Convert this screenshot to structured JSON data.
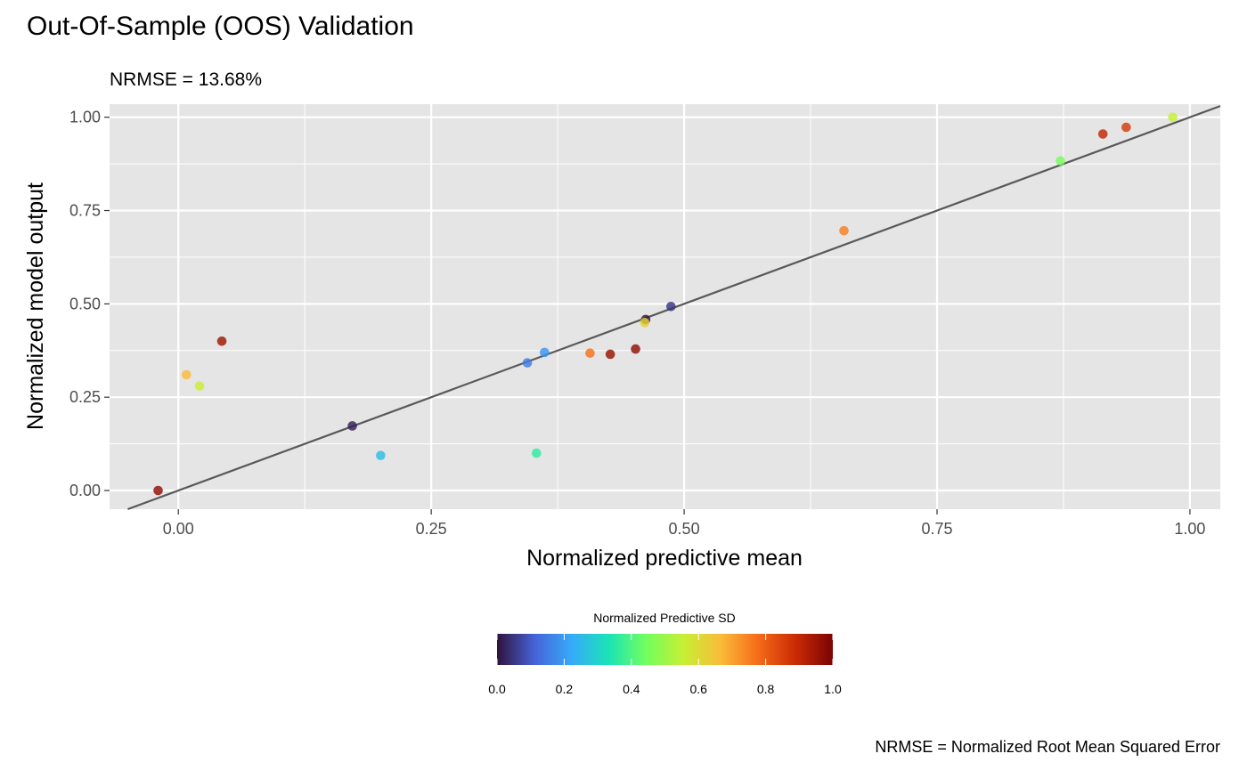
{
  "chart_data": {
    "type": "scatter",
    "title": "Out-Of-Sample (OOS) Validation",
    "subtitle": "NRMSE = 13.68%",
    "caption": "NRMSE = Normalized Root Mean Squared Error",
    "xlabel": "Normalized predictive mean",
    "ylabel": "Normalized model output",
    "xlim": [
      -0.068,
      1.03
    ],
    "ylim": [
      -0.05,
      1.035
    ],
    "xticks": [
      "0.00",
      "0.25",
      "0.50",
      "0.75",
      "1.00"
    ],
    "yticks": [
      "0.00",
      "0.25",
      "0.50",
      "0.75",
      "1.00"
    ],
    "grid": true,
    "reference_line": {
      "slope": 1,
      "intercept": 0,
      "color": "#595959"
    },
    "points": [
      {
        "x": -0.02,
        "y": 0.0,
        "sd": 0.97
      },
      {
        "x": 0.008,
        "y": 0.31,
        "sd": 0.67
      },
      {
        "x": 0.021,
        "y": 0.28,
        "sd": 0.56
      },
      {
        "x": 0.043,
        "y": 0.4,
        "sd": 0.95
      },
      {
        "x": 0.172,
        "y": 0.173,
        "sd": 0.02
      },
      {
        "x": 0.2,
        "y": 0.094,
        "sd": 0.26
      },
      {
        "x": 0.345,
        "y": 0.342,
        "sd": 0.15
      },
      {
        "x": 0.354,
        "y": 0.1,
        "sd": 0.36
      },
      {
        "x": 0.362,
        "y": 0.37,
        "sd": 0.19
      },
      {
        "x": 0.407,
        "y": 0.368,
        "sd": 0.77
      },
      {
        "x": 0.427,
        "y": 0.365,
        "sd": 0.96
      },
      {
        "x": 0.452,
        "y": 0.379,
        "sd": 0.97
      },
      {
        "x": 0.462,
        "y": 0.458,
        "sd": 0.0
      },
      {
        "x": 0.461,
        "y": 0.45,
        "sd": 0.62
      },
      {
        "x": 0.487,
        "y": 0.493,
        "sd": 0.05
      },
      {
        "x": 0.658,
        "y": 0.696,
        "sd": 0.75
      },
      {
        "x": 0.872,
        "y": 0.883,
        "sd": 0.45
      },
      {
        "x": 0.914,
        "y": 0.955,
        "sd": 0.9
      },
      {
        "x": 0.937,
        "y": 0.973,
        "sd": 0.86
      },
      {
        "x": 0.983,
        "y": 1.0,
        "sd": 0.55
      }
    ],
    "legend": {
      "title": "Normalized Predictive SD",
      "placement": "bottom",
      "ticks": [
        "0.0",
        "0.2",
        "0.4",
        "0.6",
        "0.8",
        "1.0"
      ],
      "colormap": [
        "#30123b",
        "#4662d7",
        "#36aaf9",
        "#1ae4b6",
        "#72fe5e",
        "#c7ef34",
        "#fabb3a",
        "#f66b19",
        "#ca2a04",
        "#7a0403"
      ]
    }
  }
}
